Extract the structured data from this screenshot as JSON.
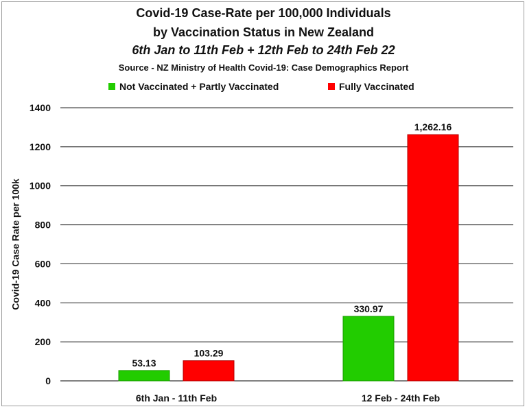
{
  "chart_data": {
    "type": "bar",
    "title": "Covid-19 Case-Rate per 100,000 Individuals",
    "title_line2": "by Vaccination Status in New Zealand",
    "subtitle": "6th Jan to 11th Feb + 12th Feb to 24th Feb 22",
    "source": "Source - NZ Ministry of Health Covid-19: Case Demographics Report",
    "ylabel": "Covid-19 Case Rate per 100k",
    "xlabel": "",
    "categories": [
      "6th Jan - 11th Feb",
      "12 Feb - 24th Feb"
    ],
    "series": [
      {
        "name": "Not Vaccinated + Partly Vaccinated",
        "color": "#22cc00",
        "values": [
          53.13,
          330.97
        ],
        "labels": [
          "53.13",
          "330.97"
        ]
      },
      {
        "name": "Fully Vaccinated",
        "color": "#ff0000",
        "values": [
          103.29,
          1262.16
        ],
        "labels": [
          "103.29",
          "1,262.16"
        ]
      }
    ],
    "ylim": [
      0,
      1400
    ],
    "yticks": [
      "0",
      "200",
      "400",
      "600",
      "800",
      "1000",
      "1200",
      "1400"
    ],
    "ytick_values": [
      0,
      200,
      400,
      600,
      800,
      1000,
      1200,
      1400
    ],
    "grid": true,
    "legend_position": "top"
  }
}
